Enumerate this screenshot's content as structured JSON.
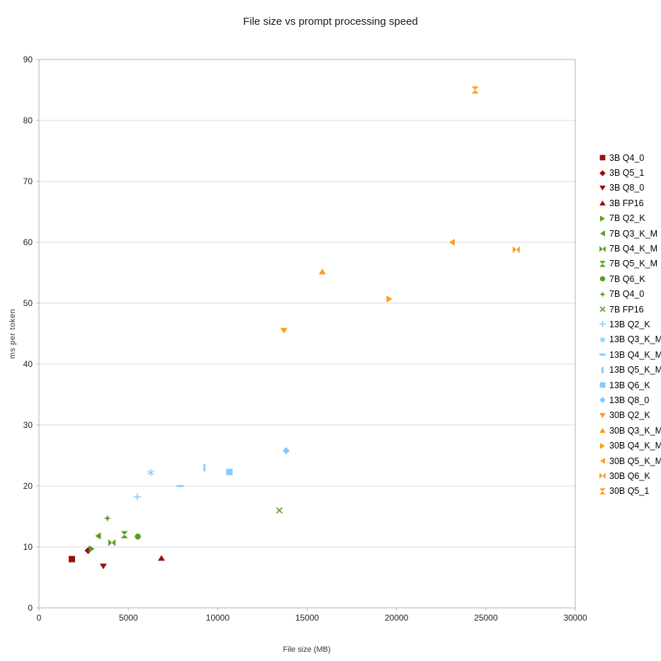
{
  "chart_data": {
    "type": "scatter",
    "title": "File size vs prompt processing speed",
    "xlabel": "File size (MB)",
    "ylabel": "ms per token",
    "xlim": [
      0,
      30000
    ],
    "ylim": [
      0,
      90
    ],
    "x_ticks": [
      0,
      5000,
      10000,
      15000,
      20000,
      25000,
      30000
    ],
    "y_ticks": [
      0,
      10,
      20,
      30,
      40,
      50,
      60,
      70,
      80,
      90
    ],
    "grid": "horizontal",
    "legend_position": "right",
    "colors": {
      "3B": "#951212",
      "7B": "#579D1C",
      "13B": "#83CAFF",
      "30B": "#FF9C1A"
    },
    "axis_color": "#b3b3b3",
    "grid_color": "#d9d9d9",
    "series": [
      {
        "name": "3B Q4_0",
        "group": "3B",
        "marker": "square",
        "color": "#951212",
        "x": 1840,
        "y": 8.0
      },
      {
        "name": "3B Q5_1",
        "group": "3B",
        "marker": "diamond",
        "color": "#951212",
        "x": 2750,
        "y": 9.4
      },
      {
        "name": "3B Q8_0",
        "group": "3B",
        "marker": "triangle-down",
        "color": "#951212",
        "x": 3600,
        "y": 6.8
      },
      {
        "name": "3B FP16",
        "group": "3B",
        "marker": "triangle-up",
        "color": "#951212",
        "x": 6850,
        "y": 8.2
      },
      {
        "name": "7B Q2_K",
        "group": "7B",
        "marker": "triangle-right",
        "color": "#579D1C",
        "x": 2950,
        "y": 9.7
      },
      {
        "name": "7B Q3_K_M",
        "group": "7B",
        "marker": "triangle-left",
        "color": "#579D1C",
        "x": 3300,
        "y": 11.8
      },
      {
        "name": "7B Q4_K_M",
        "group": "7B",
        "marker": "bowtie",
        "color": "#579D1C",
        "x": 4080,
        "y": 10.7
      },
      {
        "name": "7B Q5_K_M",
        "group": "7B",
        "marker": "hourglass",
        "color": "#579D1C",
        "x": 4780,
        "y": 12.0
      },
      {
        "name": "7B Q6_K",
        "group": "7B",
        "marker": "circle",
        "color": "#579D1C",
        "x": 5530,
        "y": 11.7
      },
      {
        "name": "7B Q4_0",
        "group": "7B",
        "marker": "star4",
        "color": "#579D1C",
        "x": 3830,
        "y": 14.7
      },
      {
        "name": "7B FP16",
        "group": "7B",
        "marker": "x",
        "color": "#579D1C",
        "x": 13450,
        "y": 16.0
      },
      {
        "name": "13B Q2_K",
        "group": "13B",
        "marker": "plus",
        "color": "#83CAFF",
        "x": 5500,
        "y": 18.2
      },
      {
        "name": "13B Q3_K_M",
        "group": "13B",
        "marker": "asterisk",
        "color": "#83CAFF",
        "x": 6250,
        "y": 22.2
      },
      {
        "name": "13B Q4_K_M",
        "group": "13B",
        "marker": "hbar",
        "color": "#83CAFF",
        "x": 7900,
        "y": 20.0
      },
      {
        "name": "13B Q5_K_M",
        "group": "13B",
        "marker": "vbar",
        "color": "#83CAFF",
        "x": 9250,
        "y": 23.0
      },
      {
        "name": "13B Q6_K",
        "group": "13B",
        "marker": "square",
        "color": "#83CAFF",
        "x": 10650,
        "y": 22.3
      },
      {
        "name": "13B Q8_0",
        "group": "13B",
        "marker": "diamond",
        "color": "#83CAFF",
        "x": 13830,
        "y": 25.8
      },
      {
        "name": "30B Q2_K",
        "group": "30B",
        "marker": "triangle-down",
        "color": "#FF9C1A",
        "x": 13700,
        "y": 45.5
      },
      {
        "name": "30B Q3_K_M",
        "group": "30B",
        "marker": "triangle-up",
        "color": "#FF9C1A",
        "x": 15850,
        "y": 55.2
      },
      {
        "name": "30B Q4_K_M",
        "group": "30B",
        "marker": "triangle-right",
        "color": "#FF9C1A",
        "x": 19600,
        "y": 50.7
      },
      {
        "name": "30B Q5_K_M",
        "group": "30B",
        "marker": "triangle-left",
        "color": "#FF9C1A",
        "x": 23100,
        "y": 60.0
      },
      {
        "name": "30B Q6_K",
        "group": "30B",
        "marker": "bowtie",
        "color": "#FF9C1A",
        "x": 26700,
        "y": 58.8
      },
      {
        "name": "30B Q5_1",
        "group": "30B",
        "marker": "hourglass",
        "color": "#FF9C1A",
        "x": 24400,
        "y": 85.0
      }
    ]
  }
}
